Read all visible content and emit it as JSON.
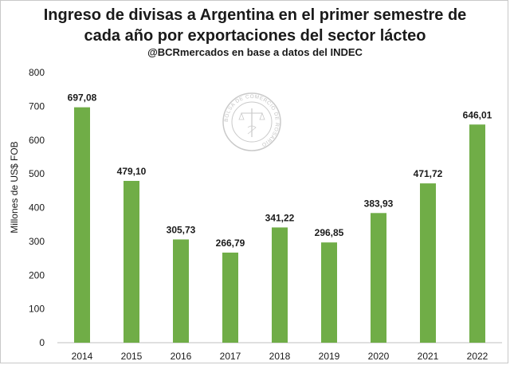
{
  "chart_data": {
    "type": "bar",
    "title": "Ingreso de divisas a Argentina en el primer semestre de cada año por exportaciones del sector lácteo",
    "title_lines": [
      "Ingreso de divisas a Argentina en el primer semestre de",
      "cada año por exportaciones del sector lácteo"
    ],
    "subtitle": "@BCRmercados en base a datos del INDEC",
    "ylabel": "Millones de US$ FOB",
    "xlabel": "",
    "categories": [
      "2014",
      "2015",
      "2016",
      "2017",
      "2018",
      "2019",
      "2020",
      "2021",
      "2022"
    ],
    "values": [
      697.08,
      479.1,
      305.73,
      266.79,
      341.22,
      296.85,
      383.93,
      471.72,
      646.01
    ],
    "data_labels": [
      "697,08",
      "479,10",
      "305,73",
      "266,79",
      "341,22",
      "296,85",
      "383,93",
      "471,72",
      "646,01"
    ],
    "ylim": [
      0,
      800
    ],
    "yticks": [
      0,
      100,
      200,
      300,
      400,
      500,
      600,
      700,
      800
    ],
    "grid": false,
    "bar_color": "#70ad47"
  },
  "watermark": {
    "text": "BOLSA DE COMERCIO DE ROSARIO"
  }
}
